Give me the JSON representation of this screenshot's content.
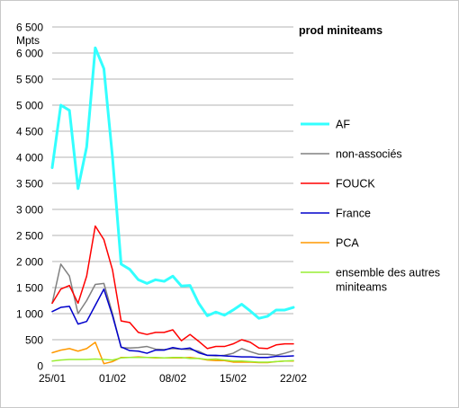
{
  "chart_data": {
    "type": "line",
    "title": "prod miniteams",
    "ylabel": "Mpts",
    "ylim": [
      0,
      6500
    ],
    "yticks": [
      0,
      500,
      1000,
      1500,
      2000,
      2500,
      3000,
      3500,
      4000,
      4500,
      5000,
      5500,
      6000,
      6500
    ],
    "ytick_labels": [
      "0",
      "500",
      "1 000",
      "1 500",
      "2 000",
      "2 500",
      "3 000",
      "3 500",
      "4 000",
      "4 500",
      "5 000",
      "5 500",
      "6 000",
      "6 500"
    ],
    "x": [
      "25/01",
      "26/01",
      "27/01",
      "28/01",
      "29/01",
      "30/01",
      "31/01",
      "01/02",
      "02/02",
      "03/02",
      "04/02",
      "05/02",
      "06/02",
      "07/02",
      "08/02",
      "09/02",
      "10/02",
      "11/02",
      "12/02",
      "13/02",
      "14/02",
      "15/02",
      "16/02",
      "17/02",
      "18/02",
      "19/02",
      "20/02",
      "21/02",
      "22/02"
    ],
    "xticks": [
      "25/01",
      "01/02",
      "08/02",
      "15/02",
      "22/02"
    ],
    "grid": "horizontal",
    "legend_position": "right",
    "series": [
      {
        "name": "AF",
        "color": "#33ffff",
        "width": 3,
        "values": [
          3800,
          5000,
          4900,
          3400,
          4200,
          6100,
          5700,
          4000,
          1950,
          1850,
          1650,
          1580,
          1650,
          1620,
          1720,
          1530,
          1540,
          1200,
          960,
          1030,
          970,
          1070,
          1180,
          1050,
          910,
          950,
          1070,
          1070,
          1120
        ]
      },
      {
        "name": "non-associés",
        "color": "#808080",
        "width": 1.5,
        "values": [
          1200,
          1950,
          1720,
          1000,
          1250,
          1560,
          1580,
          1000,
          350,
          340,
          350,
          370,
          320,
          310,
          330,
          320,
          310,
          280,
          200,
          190,
          200,
          240,
          330,
          270,
          220,
          220,
          200,
          240,
          290
        ]
      },
      {
        "name": "FOUCK",
        "color": "#ff0000",
        "width": 1.5,
        "values": [
          1200,
          1470,
          1540,
          1200,
          1720,
          2680,
          2420,
          1840,
          860,
          830,
          640,
          600,
          640,
          640,
          690,
          480,
          600,
          470,
          330,
          370,
          370,
          420,
          500,
          450,
          340,
          330,
          400,
          420,
          420
        ]
      },
      {
        "name": "France",
        "color": "#0000cc",
        "width": 1.5,
        "values": [
          1040,
          1120,
          1140,
          800,
          850,
          1160,
          1470,
          960,
          360,
          290,
          280,
          240,
          300,
          300,
          350,
          320,
          340,
          250,
          200,
          200,
          190,
          180,
          170,
          170,
          160,
          160,
          180,
          180,
          190
        ]
      },
      {
        "name": "PCA",
        "color": "#ff9900",
        "width": 1.5,
        "values": [
          250,
          300,
          330,
          280,
          330,
          450,
          40,
          80,
          160,
          160,
          170,
          160,
          150,
          150,
          150,
          150,
          160,
          140,
          110,
          100,
          100,
          70,
          70,
          70,
          60,
          60,
          80,
          90,
          90
        ]
      },
      {
        "name": "ensemble des autres miniteams",
        "color": "#99ee33",
        "width": 1.5,
        "values": [
          90,
          110,
          120,
          120,
          120,
          130,
          120,
          110,
          150,
          160,
          160,
          160,
          160,
          150,
          160,
          160,
          140,
          140,
          120,
          130,
          110,
          90,
          90,
          80,
          70,
          70,
          80,
          90,
          100
        ]
      }
    ]
  }
}
